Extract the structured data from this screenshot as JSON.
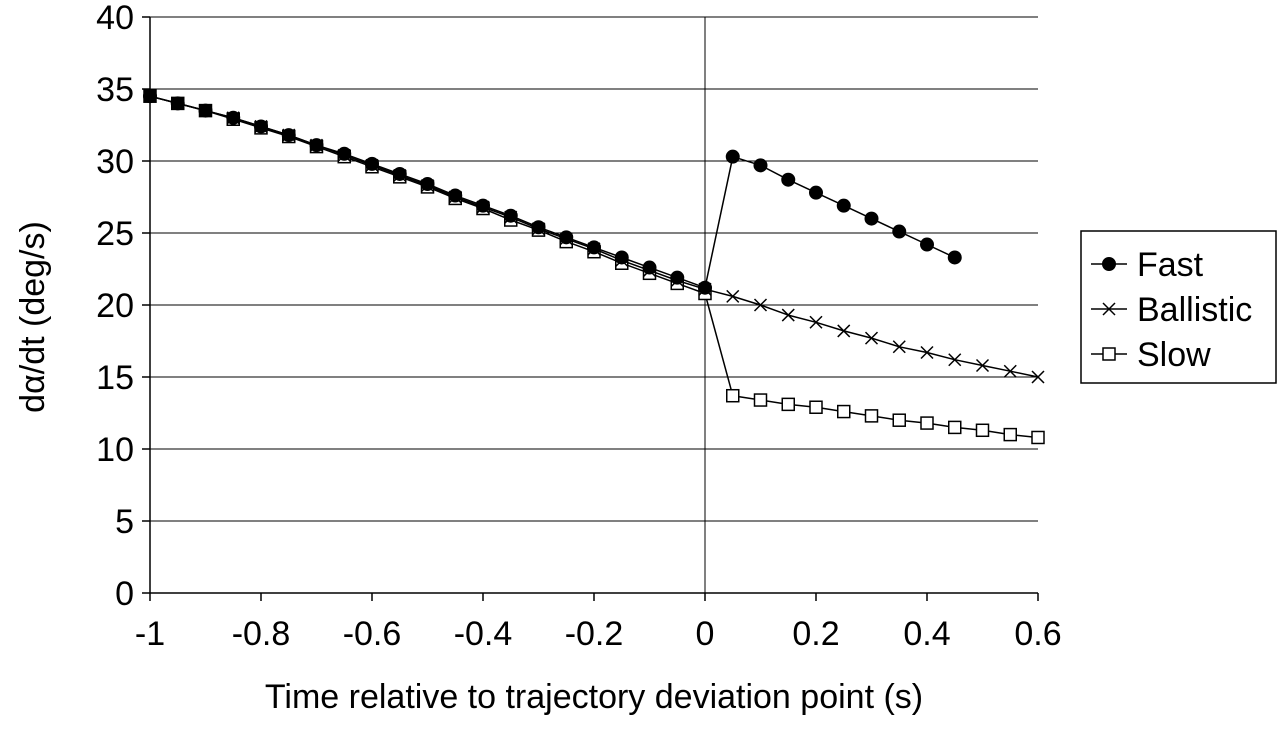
{
  "chart_data": {
    "type": "line",
    "title": "",
    "xlabel": "Time relative to trajectory deviation point (s)",
    "ylabel": "dα/dt (deg/s)",
    "xlim": [
      -1,
      0.6
    ],
    "ylim": [
      0,
      40
    ],
    "x_ticks": [
      -1,
      -0.8,
      -0.6,
      -0.4,
      -0.2,
      0,
      0.2,
      0.4,
      0.6
    ],
    "x_tick_labels": [
      "-1",
      "-0.8",
      "-0.6",
      "-0.4",
      "-0.2",
      "0",
      "0.2",
      "0.4",
      "0.6"
    ],
    "y_ticks": [
      0,
      5,
      10,
      15,
      20,
      25,
      30,
      35,
      40
    ],
    "y_tick_labels": [
      "0",
      "5",
      "10",
      "15",
      "20",
      "25",
      "30",
      "35",
      "40"
    ],
    "grid": "horizontal",
    "legend_position": "right",
    "series": [
      {
        "name": "Fast",
        "marker": "filled-circle",
        "points": [
          [
            -1,
            34.5
          ],
          [
            -0.95,
            34.0
          ],
          [
            -0.9,
            33.5
          ],
          [
            -0.85,
            33.0
          ],
          [
            -0.8,
            32.4
          ],
          [
            -0.75,
            31.8
          ],
          [
            -0.7,
            31.1
          ],
          [
            -0.65,
            30.5
          ],
          [
            -0.6,
            29.8
          ],
          [
            -0.55,
            29.1
          ],
          [
            -0.5,
            28.4
          ],
          [
            -0.45,
            27.6
          ],
          [
            -0.4,
            26.9
          ],
          [
            -0.35,
            26.2
          ],
          [
            -0.3,
            25.4
          ],
          [
            -0.25,
            24.7
          ],
          [
            -0.2,
            24.0
          ],
          [
            -0.15,
            23.3
          ],
          [
            -0.1,
            22.6
          ],
          [
            -0.05,
            21.9
          ],
          [
            0,
            21.2
          ],
          [
            0.05,
            30.3
          ],
          [
            0.1,
            29.7
          ],
          [
            0.15,
            28.7
          ],
          [
            0.2,
            27.8
          ],
          [
            0.25,
            26.9
          ],
          [
            0.3,
            26.0
          ],
          [
            0.35,
            25.1
          ],
          [
            0.4,
            24.2
          ],
          [
            0.45,
            23.3
          ]
        ]
      },
      {
        "name": "Ballistic",
        "marker": "x",
        "points": [
          [
            -1,
            34.5
          ],
          [
            -0.95,
            34.0
          ],
          [
            -0.9,
            33.5
          ],
          [
            -0.85,
            33.0
          ],
          [
            -0.8,
            32.4
          ],
          [
            -0.75,
            31.8
          ],
          [
            -0.7,
            31.1
          ],
          [
            -0.65,
            30.4
          ],
          [
            -0.6,
            29.7
          ],
          [
            -0.55,
            29.0
          ],
          [
            -0.5,
            28.3
          ],
          [
            -0.45,
            27.5
          ],
          [
            -0.4,
            26.8
          ],
          [
            -0.35,
            26.1
          ],
          [
            -0.3,
            25.3
          ],
          [
            -0.25,
            24.6
          ],
          [
            -0.2,
            23.9
          ],
          [
            -0.15,
            23.1
          ],
          [
            -0.1,
            22.4
          ],
          [
            -0.05,
            21.7
          ],
          [
            0,
            21.1
          ],
          [
            0.05,
            20.6
          ],
          [
            0.1,
            20.0
          ],
          [
            0.15,
            19.3
          ],
          [
            0.2,
            18.8
          ],
          [
            0.25,
            18.2
          ],
          [
            0.3,
            17.7
          ],
          [
            0.35,
            17.1
          ],
          [
            0.4,
            16.7
          ],
          [
            0.45,
            16.2
          ],
          [
            0.5,
            15.8
          ],
          [
            0.55,
            15.4
          ],
          [
            0.6,
            15.0
          ]
        ]
      },
      {
        "name": "Slow",
        "marker": "open-square",
        "points": [
          [
            -1,
            34.5
          ],
          [
            -0.95,
            34.0
          ],
          [
            -0.9,
            33.5
          ],
          [
            -0.85,
            32.9
          ],
          [
            -0.8,
            32.3
          ],
          [
            -0.75,
            31.7
          ],
          [
            -0.7,
            31.0
          ],
          [
            -0.65,
            30.3
          ],
          [
            -0.6,
            29.6
          ],
          [
            -0.55,
            28.9
          ],
          [
            -0.5,
            28.2
          ],
          [
            -0.45,
            27.4
          ],
          [
            -0.4,
            26.7
          ],
          [
            -0.35,
            25.9
          ],
          [
            -0.3,
            25.2
          ],
          [
            -0.25,
            24.4
          ],
          [
            -0.2,
            23.7
          ],
          [
            -0.15,
            22.9
          ],
          [
            -0.1,
            22.2
          ],
          [
            -0.05,
            21.5
          ],
          [
            0,
            20.8
          ],
          [
            0.05,
            13.7
          ],
          [
            0.1,
            13.4
          ],
          [
            0.15,
            13.1
          ],
          [
            0.2,
            12.9
          ],
          [
            0.25,
            12.6
          ],
          [
            0.3,
            12.3
          ],
          [
            0.35,
            12.0
          ],
          [
            0.4,
            11.8
          ],
          [
            0.45,
            11.5
          ],
          [
            0.5,
            11.3
          ],
          [
            0.55,
            11.0
          ],
          [
            0.6,
            10.8
          ]
        ]
      }
    ]
  }
}
